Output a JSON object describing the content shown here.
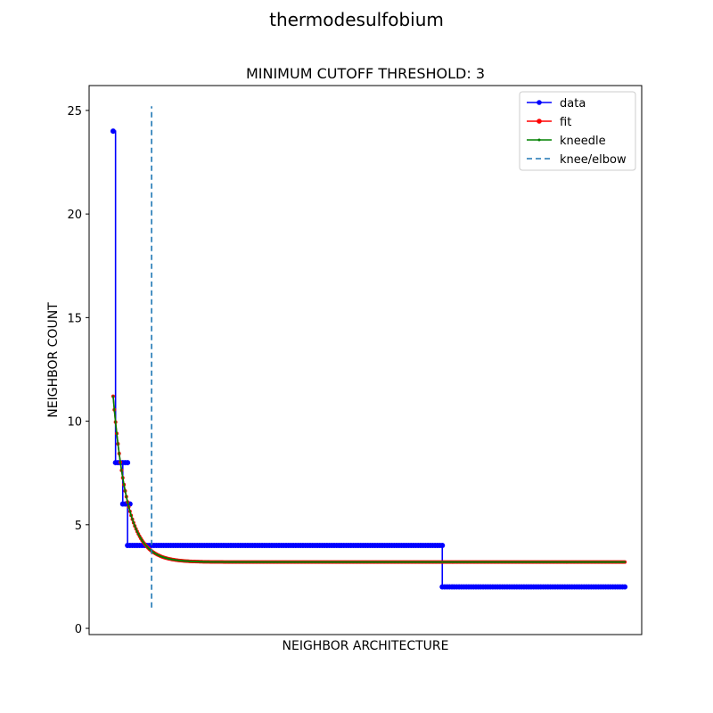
{
  "figure": {
    "suptitle": "thermodesulfobium"
  },
  "chart_data": {
    "type": "line",
    "title": "MINIMUM CUTOFF THRESHOLD: 3",
    "xlabel": "NEIGHBOR ARCHITECTURE",
    "ylabel": "NEIGHBOR COUNT",
    "xlim": [
      -10,
      220
    ],
    "ylim": [
      -0.3,
      26.2
    ],
    "x_ticks_visible": false,
    "y_ticks": [
      0,
      5,
      10,
      15,
      20,
      25
    ],
    "y_tick_labels": [
      "0",
      "5",
      "10",
      "15",
      "20",
      "25"
    ],
    "grid": false,
    "legend": {
      "placement": "upper right",
      "entries": [
        {
          "label": "data",
          "color": "#0000ff",
          "style": "line-marker"
        },
        {
          "label": "fit",
          "color": "#ff0000",
          "style": "line-marker"
        },
        {
          "label": "kneedle",
          "color": "#008000",
          "style": "line-marker-small"
        },
        {
          "label": "knee/elbow",
          "color": "#1f77b4",
          "style": "dashed"
        }
      ]
    },
    "series": [
      {
        "name": "data",
        "color": "#0000ff",
        "step_segments": [
          {
            "x_start": 0,
            "x_end": 0,
            "y": 24
          },
          {
            "x_start": 1,
            "x_end": 3,
            "y": 8
          },
          {
            "x_start": 4,
            "x_end": 6,
            "y": 8
          },
          {
            "x_start": 4,
            "x_end": 6,
            "y": 6
          },
          {
            "x_start": 6,
            "x_end": 7,
            "y": 6
          },
          {
            "x_start": 6,
            "x_end": 137,
            "y": 4
          },
          {
            "x_start": 137,
            "x_end": 213,
            "y": 2
          }
        ]
      },
      {
        "name": "fit",
        "color": "#ff0000",
        "curve": {
          "kind": "exp_decay",
          "x_start": 0,
          "x_end": 213,
          "y_start": 11.2,
          "y_floor": 3.2,
          "y_at_x_30": 3.25
        }
      },
      {
        "name": "kneedle",
        "color": "#008000",
        "curve": {
          "kind": "exp_decay",
          "x_start": 0,
          "x_end": 213,
          "y_start": 11.2,
          "y_floor": 3.2,
          "y_at_x_30": 3.25
        }
      }
    ],
    "knee": {
      "label": "knee/elbow",
      "x": 16,
      "y_start": 1,
      "y_end": 25.2,
      "color": "#1f77b4"
    }
  }
}
